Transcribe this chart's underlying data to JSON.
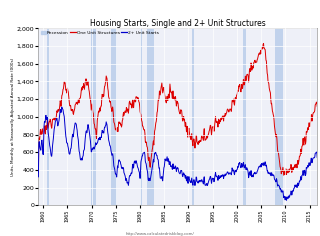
{
  "title": "Housing Starts, Single and 2+ Unit Structures",
  "ylabel": "Units, Monthly at Seasonally Adjusted Annual Rate (000s)",
  "source": "http://www.calculatedriskblog.com/",
  "ylim": [
    0,
    2000
  ],
  "yticks": [
    0,
    200,
    400,
    600,
    800,
    1000,
    1200,
    1400,
    1600,
    1800,
    2000
  ],
  "background_color": "#eef0f8",
  "recession_color": "#aec6e8",
  "one_unit_color": "#dd0000",
  "two_plus_color": "#0000cc",
  "recession_bands": [
    [
      1960.75,
      1961.17
    ],
    [
      1969.92,
      1970.92
    ],
    [
      1973.92,
      1975.17
    ],
    [
      1980.0,
      1980.5
    ],
    [
      1981.5,
      1982.83
    ],
    [
      1990.67,
      1991.17
    ],
    [
      2001.25,
      2001.92
    ],
    [
      2007.92,
      2009.5
    ]
  ],
  "xlim": [
    1959.0,
    2016.5
  ]
}
